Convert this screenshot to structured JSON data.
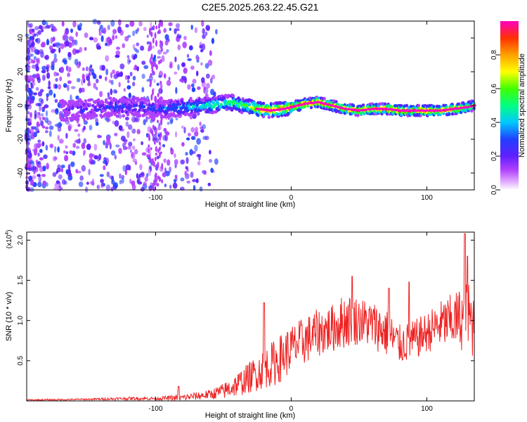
{
  "figure_title": "C2E5.2025.263.22.45.G21",
  "chart_data": [
    {
      "type": "heatmap",
      "xlabel": "Height of straight line (km)",
      "ylabel": "Frequency (Hz)",
      "xlim": [
        -195,
        135
      ],
      "ylim": [
        -50,
        50
      ],
      "xticks": [
        -100,
        0,
        100
      ],
      "xtick_labels": [
        "-100",
        "0",
        "100"
      ],
      "yticks": [
        -40,
        -20,
        0,
        20,
        40
      ],
      "ytick_labels": [
        "-40",
        "-20",
        "0",
        "20",
        "40"
      ],
      "colorbar": {
        "label": "Normalized spectral amplitude",
        "range": [
          0.0,
          1.0
        ],
        "ticks": [
          0.0,
          0.2,
          0.4,
          0.6,
          0.8
        ],
        "tick_labels": [
          "0.0",
          "0.2",
          "0.4",
          "0.6",
          "0.8"
        ]
      },
      "ridge": {
        "x": [
          -165,
          -150,
          -130,
          -110,
          -95,
          -80,
          -60,
          -45,
          -35,
          -25,
          -15,
          -5,
          0,
          10,
          20,
          30,
          40,
          50,
          60,
          70,
          80,
          90,
          100,
          110,
          120,
          130,
          135
        ],
        "freq": [
          -3,
          -2,
          -1,
          -1,
          -2,
          -1,
          0,
          2,
          0,
          -2,
          -3,
          -2,
          -1,
          1,
          2,
          0,
          -2,
          -3,
          -2,
          -2,
          -3,
          -3,
          -3,
          -3,
          -2,
          -1,
          0
        ],
        "amplitude": [
          0.2,
          0.25,
          0.3,
          0.3,
          0.3,
          0.4,
          0.5,
          0.55,
          0.6,
          0.8,
          0.9,
          0.9,
          0.95,
          0.95,
          0.95,
          0.9,
          0.9,
          0.9,
          0.9,
          0.95,
          0.95,
          0.95,
          0.95,
          0.9,
          0.9,
          0.8,
          0.7
        ]
      }
    },
    {
      "type": "line",
      "xlabel": "Height of straight line (km)",
      "ylabel": "SNR (10 * v/v)",
      "y_scale_label": "(x10",
      "y_scale_exponent": "4",
      "y_scale_close": ")",
      "xlim": [
        -195,
        135
      ],
      "ylim": [
        0.0,
        2.1
      ],
      "xticks": [
        -100,
        0,
        100
      ],
      "xtick_labels": [
        "-100",
        "0",
        "100"
      ],
      "yticks": [
        0.5,
        1.0,
        1.5,
        2.0
      ],
      "ytick_labels": [
        "0.5",
        "1.0",
        "1.5",
        "2.0"
      ],
      "series": [
        {
          "name": "SNR",
          "color": "#ee2222",
          "envelope_x": [
            -195,
            -150,
            -120,
            -100,
            -80,
            -60,
            -50,
            -40,
            -30,
            -20,
            -10,
            0,
            10,
            20,
            30,
            40,
            50,
            60,
            70,
            80,
            90,
            100,
            110,
            120,
            130,
            135
          ],
          "envelope_mean": [
            0.01,
            0.02,
            0.03,
            0.03,
            0.04,
            0.08,
            0.12,
            0.2,
            0.3,
            0.4,
            0.5,
            0.65,
            0.75,
            0.85,
            0.9,
            1.0,
            1.0,
            0.95,
            0.85,
            0.7,
            0.75,
            0.85,
            0.95,
            1.0,
            1.05,
            0.95
          ],
          "envelope_spread": [
            0.01,
            0.01,
            0.02,
            0.02,
            0.04,
            0.06,
            0.1,
            0.15,
            0.2,
            0.25,
            0.3,
            0.3,
            0.3,
            0.3,
            0.3,
            0.35,
            0.3,
            0.3,
            0.3,
            0.25,
            0.25,
            0.25,
            0.3,
            0.35,
            0.45,
            0.45
          ],
          "peaks": [
            [
              -83,
              0.18
            ],
            [
              -20,
              1.22
            ],
            [
              45,
              1.55
            ],
            [
              72,
              1.4
            ],
            [
              87,
              1.48
            ],
            [
              128,
              2.08
            ],
            [
              130,
              1.8
            ]
          ]
        }
      ]
    }
  ]
}
